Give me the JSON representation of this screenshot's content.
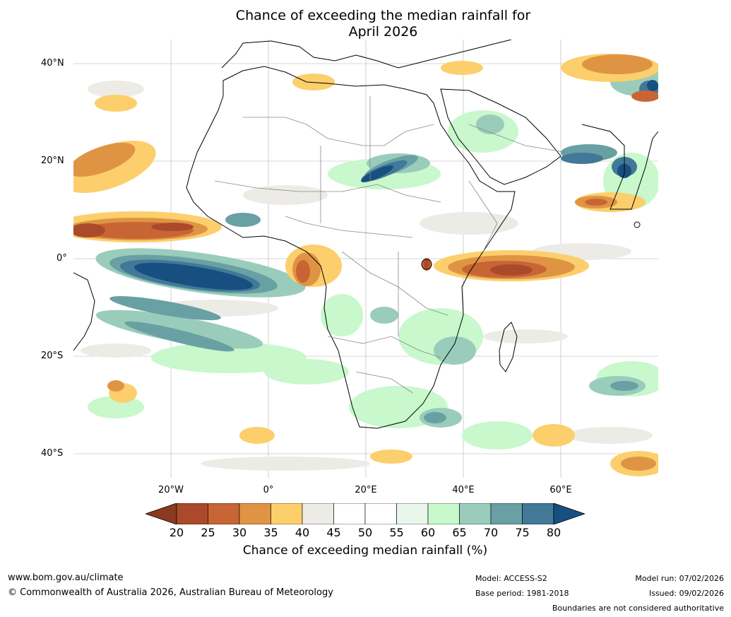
{
  "title": {
    "line1": "Chance of exceeding the median rainfall for",
    "line2": "April 2026"
  },
  "axes": {
    "lat_labels": [
      "40°N",
      "20°N",
      "0°",
      "20°S",
      "40°S"
    ],
    "lon_labels": [
      "20°W",
      "0°",
      "20°E",
      "40°E",
      "60°E"
    ]
  },
  "colorbar": {
    "label": "Chance of exceeding median rainfall (%)",
    "ticks": [
      "20",
      "25",
      "30",
      "35",
      "40",
      "45",
      "50",
      "55",
      "60",
      "65",
      "70",
      "75",
      "80"
    ],
    "colors": [
      "#8b3a22",
      "#aa4a2a",
      "#c86534",
      "#df9444",
      "#fccf6c",
      "#edebe6",
      "#ffffff",
      "#ffffff",
      "#e8f6ec",
      "#c8f8cc",
      "#9accbb",
      "#68a0a4",
      "#427898",
      "#174f80"
    ],
    "extend": "both"
  },
  "footer": {
    "website": "www.bom.gov.au/climate",
    "copyright": "© Commonwealth of Australia 2026, Australian Bureau of Meteorology",
    "model": "Model: ACCESS-S2",
    "base_period": "Base period: 1981-2018",
    "model_run": "Model run: 07/02/2026",
    "issued": "Issued: 09/02/2026",
    "disclaimer": "Boundaries are not considered authoritative"
  },
  "map_colors": {
    "dry_strong": "#aa4a2a",
    "dry_mid": "#c86534",
    "dry_light": "#df9444",
    "dry_pale": "#fccf6c",
    "neutral": "#edebe6",
    "wet_pale": "#c8f8cc",
    "wet_mid": "#9accbb",
    "wet_teal": "#68a0a4",
    "wet_strong": "#427898",
    "wet_dark": "#174f80",
    "coastline": "#000000",
    "border": "#888888"
  }
}
